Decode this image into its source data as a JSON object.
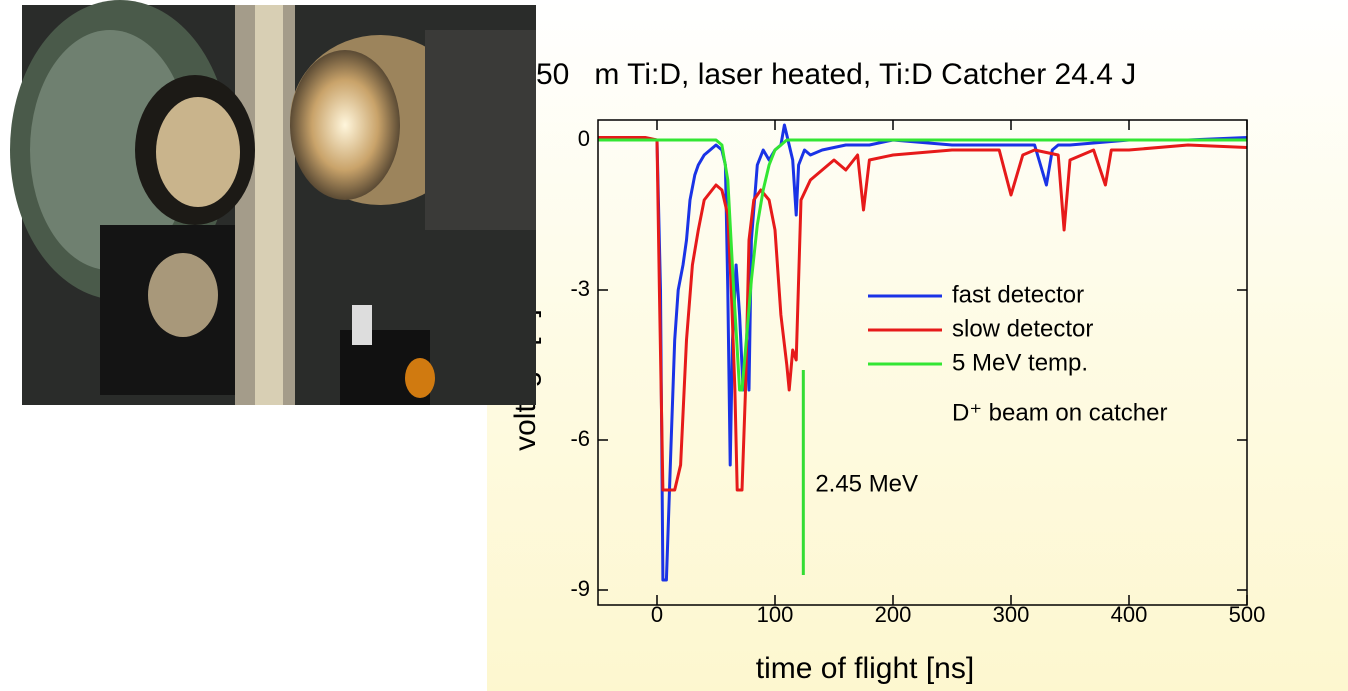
{
  "chart_data": {
    "type": "line",
    "title": "50   m Ti:D, laser heated, Ti:D Catcher 24.4 J",
    "x_label": "time of flight [ns]",
    "y_label": "voltage [V]",
    "xlim": [
      -50,
      500
    ],
    "xticks": [
      0,
      100,
      200,
      300,
      400,
      500
    ],
    "ylim": [
      -9.3,
      0.4
    ],
    "yticks": [
      0,
      -3,
      -6,
      -9
    ],
    "grid": false,
    "legend_position": "right",
    "legend_note": "D⁺ beam on catcher",
    "annotation": {
      "text": "2.45 MeV",
      "color": "#33dd33",
      "x": 124,
      "y_range": [
        -8.7,
        -4.6
      ]
    },
    "series": [
      {
        "name": "fast detector",
        "color": "#1a33e6",
        "x": [
          -50,
          -20,
          0,
          3,
          5,
          8,
          12,
          15,
          18,
          22,
          25,
          28,
          32,
          35,
          40,
          45,
          50,
          55,
          58,
          60,
          62,
          64,
          67,
          70,
          73,
          76,
          78,
          80,
          85,
          90,
          95,
          100,
          105,
          108,
          110,
          115,
          118,
          120,
          125,
          130,
          140,
          150,
          160,
          180,
          200,
          250,
          300,
          320,
          330,
          335,
          340,
          350,
          400,
          450,
          500
        ],
        "values": [
          0,
          0.05,
          0,
          -3,
          -8.8,
          -8.8,
          -6,
          -4,
          -3,
          -2.5,
          -2,
          -1.2,
          -0.7,
          -0.5,
          -0.3,
          -0.2,
          -0.1,
          -0.2,
          -0.5,
          -3,
          -6.5,
          -4,
          -2.5,
          -3.5,
          -5,
          -4,
          -5,
          -2,
          -0.5,
          -0.2,
          -0.4,
          -0.2,
          -0.1,
          0.3,
          0.1,
          -0.4,
          -1.5,
          -0.5,
          -0.2,
          -0.3,
          -0.2,
          -0.15,
          -0.1,
          -0.1,
          0,
          -0.1,
          -0.1,
          -0.1,
          -0.9,
          -0.2,
          -0.1,
          -0.1,
          0,
          0,
          0.05
        ]
      },
      {
        "name": "slow detector",
        "color": "#e61a1a",
        "x": [
          -50,
          -10,
          0,
          2,
          5,
          10,
          15,
          20,
          25,
          30,
          35,
          40,
          50,
          55,
          60,
          63,
          66,
          68,
          72,
          75,
          78,
          82,
          88,
          95,
          100,
          105,
          110,
          112,
          115,
          118,
          122,
          130,
          140,
          150,
          160,
          170,
          175,
          180,
          200,
          250,
          290,
          300,
          310,
          320,
          340,
          345,
          350,
          370,
          380,
          385,
          400,
          450,
          500
        ],
        "values": [
          0.05,
          0.05,
          0,
          -3,
          -7,
          -7,
          -7,
          -6.5,
          -4,
          -2.5,
          -1.8,
          -1.2,
          -0.9,
          -1,
          -1.5,
          -3,
          -5,
          -7,
          -7,
          -5,
          -2,
          -1.2,
          -1,
          -1.2,
          -1.8,
          -3.5,
          -4.5,
          -5,
          -4.2,
          -4.4,
          -1.2,
          -0.8,
          -0.6,
          -0.4,
          -0.6,
          -0.3,
          -1.4,
          -0.4,
          -0.3,
          -0.2,
          -0.2,
          -1.1,
          -0.3,
          -0.2,
          -0.3,
          -1.8,
          -0.4,
          -0.2,
          -0.9,
          -0.2,
          -0.2,
          -0.1,
          -0.15
        ]
      },
      {
        "name": "5 MeV temp.",
        "color": "#33e633",
        "x": [
          -50,
          50,
          55,
          60,
          65,
          70,
          72,
          75,
          80,
          85,
          90,
          95,
          100,
          110,
          120,
          500
        ],
        "values": [
          0,
          0,
          -0.1,
          -0.8,
          -3,
          -5,
          -5,
          -4.2,
          -2.8,
          -1.7,
          -1,
          -0.5,
          -0.2,
          0,
          0,
          0
        ]
      }
    ]
  }
}
